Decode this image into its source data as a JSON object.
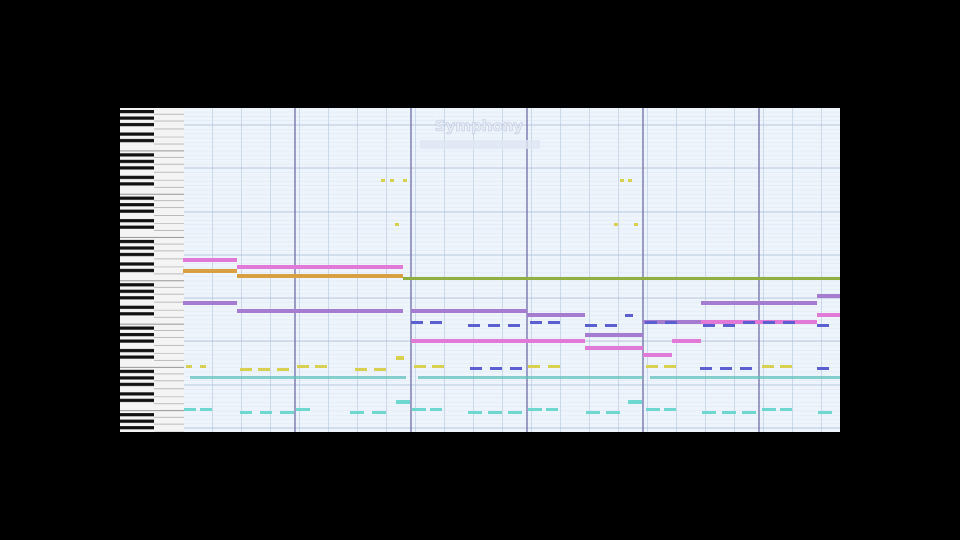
{
  "header": {
    "title": "Symphony"
  }
}
